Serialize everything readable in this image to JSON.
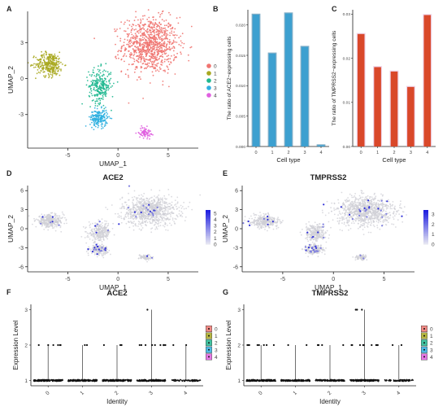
{
  "chart_data": [
    {
      "panel": "A",
      "type": "scatter",
      "xlabel": "UMAP_1",
      "ylabel": "UMAP_2",
      "x_ticks": [
        -5,
        0,
        5
      ],
      "y_ticks": [
        -3,
        0,
        3
      ],
      "xlim": [
        -9,
        8
      ],
      "ylim": [
        -5.8,
        5.6
      ],
      "legend": {
        "placement": "right",
        "entries": [
          "0",
          "1",
          "2",
          "3",
          "4"
        ]
      },
      "colors": [
        "#f07470",
        "#a8a820",
        "#20b890",
        "#30b0e0",
        "#e060e0"
      ],
      "clusters": [
        {
          "name": "0",
          "cx": 3.2,
          "cy": 2.8,
          "sx": 2.5,
          "sy": 2.1,
          "n": 900
        },
        {
          "name": "1",
          "cx": -6.8,
          "cy": 1.2,
          "sx": 1.25,
          "sy": 0.9,
          "n": 320
        },
        {
          "name": "2",
          "cx": -1.8,
          "cy": -0.6,
          "sx": 1.0,
          "sy": 1.3,
          "n": 260
        },
        {
          "name": "3",
          "cx": -1.9,
          "cy": -3.3,
          "sx": 0.8,
          "sy": 0.65,
          "n": 200
        },
        {
          "name": "4",
          "cx": 2.7,
          "cy": -4.5,
          "sx": 0.55,
          "sy": 0.4,
          "n": 80
        }
      ]
    },
    {
      "panel": "B",
      "type": "bar",
      "categories": [
        "0",
        "1",
        "2",
        "3",
        "4"
      ],
      "values": [
        0.0217,
        0.0153,
        0.0219,
        0.0164,
        0.0002
      ],
      "ylim": [
        0,
        0.0225
      ],
      "y_ticks": [
        "0.000",
        "0.005",
        "0.010",
        "0.015",
        "0.020"
      ],
      "xlabel": "Cell type",
      "ylabel": "The ratio of ACE2−expressing cells",
      "bar_color": "#3da0d0",
      "edge_color": "#1e6e9a"
    },
    {
      "panel": "C",
      "type": "bar",
      "categories": [
        "0",
        "1",
        "2",
        "3",
        "4"
      ],
      "values": [
        0.0255,
        0.018,
        0.017,
        0.0135,
        0.0298
      ],
      "ylim": [
        0,
        0.031
      ],
      "y_ticks": [
        "0.00",
        "0.01",
        "0.02",
        "0.03"
      ],
      "xlabel": "Cell type",
      "ylabel": "The ratio of TMPRSS2−expressing cells",
      "bar_color": "#d9482a",
      "edge_color": "#e2b0d8"
    },
    {
      "panel": "D",
      "type": "scatter",
      "title": "ACE2",
      "xlabel": "UMAP_1",
      "ylabel": "UMAP_2",
      "x_ticks": [
        -5,
        0,
        5
      ],
      "y_ticks": [
        -6,
        -3,
        0,
        3,
        6
      ],
      "xlim": [
        -9,
        8
      ],
      "ylim": [
        -6.8,
        6.8
      ],
      "colorbar": {
        "ticks": [
          "0",
          "1",
          "2",
          "3",
          "4",
          "5"
        ],
        "max": 5.5,
        "color_low": "#e6e6f2",
        "color_high": "#2020e0"
      },
      "expressing_fraction": 0.02
    },
    {
      "panel": "E",
      "type": "scatter",
      "title": "TMPRSS2",
      "xlabel": "UMAP_1",
      "ylabel": "UMAP_2",
      "x_ticks": [
        -5,
        0,
        5
      ],
      "y_ticks": [
        -6,
        -3,
        0,
        3,
        6
      ],
      "xlim": [
        -9,
        8
      ],
      "ylim": [
        -6.8,
        6.8
      ],
      "colorbar": {
        "ticks": [
          "0",
          "1",
          "2",
          "3"
        ],
        "max": 3.4,
        "color_low": "#e6e6f2",
        "color_high": "#2020e0"
      },
      "expressing_fraction": 0.025
    },
    {
      "panel": "F",
      "type": "scatter",
      "title": "ACE2",
      "xlabel": "Identity",
      "ylabel": "Expression Level",
      "categories": [
        "0",
        "1",
        "2",
        "3",
        "4"
      ],
      "y_ticks": [
        "1",
        "2",
        "3"
      ],
      "ylim": [
        0.85,
        3.15
      ],
      "dots_at_1": [
        140,
        140,
        140,
        140,
        70
      ],
      "dots_at_2": [
        6,
        2,
        3,
        10,
        2
      ],
      "dots_at_3": [
        0,
        0,
        0,
        1,
        0
      ],
      "legend": {
        "placement": "right",
        "entries": [
          "0",
          "1",
          "2",
          "3",
          "4"
        ]
      }
    },
    {
      "panel": "G",
      "type": "scatter",
      "title": "TMPRSS2",
      "xlabel": "Identity",
      "ylabel": "Expression Level",
      "categories": [
        "0",
        "1",
        "2",
        "3",
        "4"
      ],
      "y_ticks": [
        "1",
        "2",
        "3"
      ],
      "ylim": [
        0.85,
        3.15
      ],
      "dots_at_1": [
        140,
        140,
        140,
        140,
        70
      ],
      "dots_at_2": [
        8,
        2,
        4,
        10,
        2
      ],
      "dots_at_3": [
        0,
        0,
        0,
        3,
        0
      ],
      "legend": {
        "placement": "right",
        "entries": [
          "0",
          "1",
          "2",
          "3",
          "4"
        ]
      }
    }
  ]
}
